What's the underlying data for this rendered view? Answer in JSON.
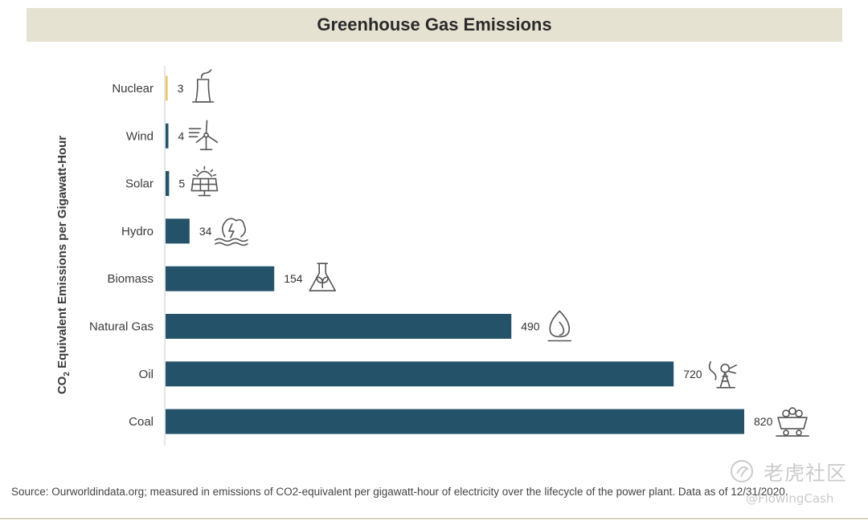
{
  "title": "Greenhouse Gas Emissions",
  "ylabel_main": "CO",
  "ylabel_sub": "2",
  "ylabel_rest": " Equivalent Emissions per Gigawatt-Hour",
  "source": "Source: Ourworldindata.org; measured in emissions of CO2-equivalent per gigawatt-hour of electricity over the lifecycle of the power plant. Data as of 12/31/2020.",
  "watermark": {
    "chinese": "老虎社区",
    "handle": "@FlowingCash"
  },
  "colors": {
    "bar": "#245369",
    "nuclear_bar": "#e8c766",
    "title_band": "#e6e2d2",
    "icon": "#555555"
  },
  "chart_data": {
    "type": "bar",
    "orientation": "horizontal",
    "categories": [
      "Nuclear",
      "Wind",
      "Solar",
      "Hydro",
      "Biomass",
      "Natural Gas",
      "Oil",
      "Coal"
    ],
    "values": [
      3,
      4,
      5,
      34,
      154,
      490,
      720,
      820
    ],
    "data_labels": [
      "3",
      "4",
      "5",
      "34",
      "154",
      "490",
      "720",
      "820"
    ],
    "icons": [
      "nuclear-plant-icon",
      "wind-turbine-icon",
      "solar-panel-icon",
      "hydro-icon",
      "biomass-flask-icon",
      "flame-icon",
      "oil-pump-icon",
      "coal-cart-icon"
    ],
    "title": "Greenhouse Gas Emissions",
    "ylabel": "CO2 Equivalent Emissions per Gigawatt-Hour",
    "xlim": [
      0,
      820
    ],
    "grid": false,
    "legend": "none"
  }
}
